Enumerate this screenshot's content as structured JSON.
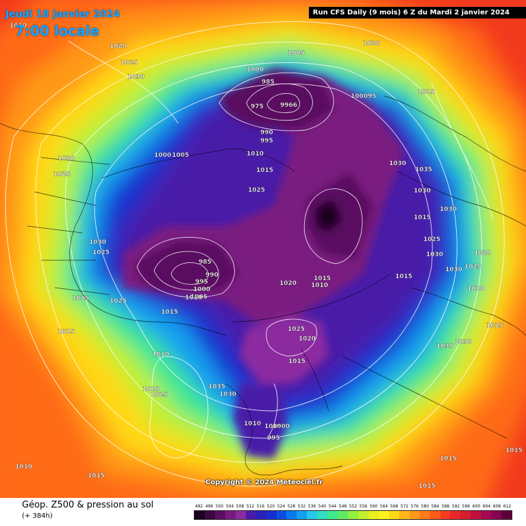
{
  "header": {
    "date_label": "Jeudi 18 janvier 2024",
    "time_label": "7:00 locale",
    "run_info": "Run CFS Daily (9 mois) 6 Z du Mardi 2 janvier 2024"
  },
  "footer": {
    "caption": "Géop. Z500 & pression au sol",
    "subcaption": "(+ 384h)",
    "copyright": "Copyright © 2024 Meteociel.fr"
  },
  "legend": {
    "values": [
      "492",
      "496",
      "500",
      "504",
      "508",
      "512",
      "516",
      "520",
      "524",
      "528",
      "532",
      "536",
      "540",
      "544",
      "548",
      "552",
      "556",
      "560",
      "564",
      "568",
      "572",
      "576",
      "580",
      "584",
      "588",
      "592",
      "596",
      "600",
      "604",
      "608",
      "612"
    ],
    "colors": [
      "#1a0020",
      "#3a0a40",
      "#5a1060",
      "#7a1a80",
      "#8c2aa0",
      "#4a1aa8",
      "#2a20b8",
      "#1430d0",
      "#0a50e0",
      "#0878f0",
      "#14a0f0",
      "#28c8e8",
      "#30e0c0",
      "#40e890",
      "#60ec60",
      "#90f040",
      "#c0f030",
      "#e8f020",
      "#fff020",
      "#ffd818",
      "#ffb818",
      "#ff9818",
      "#ff7a18",
      "#ff5a18",
      "#f83a20",
      "#e82828",
      "#d81c30",
      "#c01040",
      "#a80850",
      "#880450",
      "#600038"
    ]
  },
  "isobar_labels": [
    "1010",
    "1020",
    "1025",
    "1030",
    "1005",
    "1020",
    "1000",
    "985",
    "975",
    "9966",
    "100095",
    "1015",
    "990",
    "995",
    "1010",
    "1015",
    "1020",
    "1025",
    "1000",
    "1005",
    "1025",
    "1030",
    "1035",
    "1030",
    "1030",
    "1015",
    "1025",
    "1020",
    "1025",
    "1010",
    "1030",
    "1025",
    "1030",
    "1030",
    "985",
    "990",
    "995",
    "1000",
    "1005",
    "1010",
    "1015",
    "1015",
    "1025",
    "1015",
    "1020",
    "1010",
    "1015",
    "1025",
    "1020",
    "1015",
    "1015",
    "1010",
    "1015",
    "1025",
    "1035",
    "1030",
    "1020",
    "1035",
    "1030",
    "1010",
    "1005",
    "1000",
    "995",
    "1015",
    "1015",
    "1010",
    "1015",
    "1015"
  ]
}
